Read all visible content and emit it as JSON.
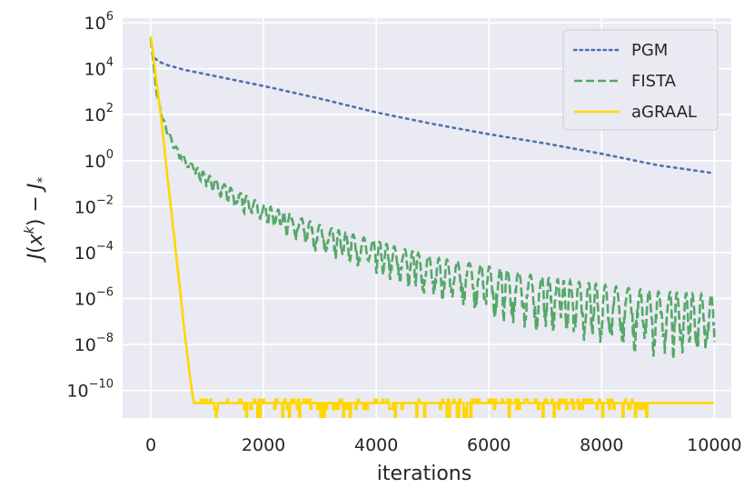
{
  "chart_data": {
    "type": "line",
    "title": "",
    "xlabel": "iterations",
    "ylabel": "J(x^k) − J_*",
    "yscale": "log",
    "xlim": [
      -500,
      10300
    ],
    "ylim_log10": [
      -11.2,
      6.2
    ],
    "grid": true,
    "legend_position": "top-right",
    "x_ticks": [
      {
        "value": 0,
        "label": "0"
      },
      {
        "value": 2000,
        "label": "2000"
      },
      {
        "value": 4000,
        "label": "4000"
      },
      {
        "value": 6000,
        "label": "6000"
      },
      {
        "value": 8000,
        "label": "8000"
      },
      {
        "value": 10000,
        "label": "10000"
      }
    ],
    "y_ticks": [
      {
        "exp": 6,
        "base": "10",
        "sup": "6"
      },
      {
        "exp": 4,
        "base": "10",
        "sup": "4"
      },
      {
        "exp": 2,
        "base": "10",
        "sup": "2"
      },
      {
        "exp": 0,
        "base": "10",
        "sup": "0"
      },
      {
        "exp": -2,
        "base": "10",
        "sup": "−2"
      },
      {
        "exp": -4,
        "base": "10",
        "sup": "−4"
      },
      {
        "exp": -6,
        "base": "10",
        "sup": "−6"
      },
      {
        "exp": -8,
        "base": "10",
        "sup": "−8"
      },
      {
        "exp": -10,
        "base": "10",
        "sup": "−10"
      }
    ],
    "series": [
      {
        "name": "PGM",
        "color": "#4c72b0",
        "style": "dotted",
        "x": [
          0,
          50,
          150,
          300,
          600,
          1000,
          1500,
          2000,
          3000,
          4000,
          5000,
          6000,
          7000,
          8000,
          9000,
          10000
        ],
        "log10_y": [
          5.3,
          4.5,
          4.3,
          4.15,
          3.95,
          3.75,
          3.5,
          3.25,
          2.7,
          2.1,
          1.6,
          1.15,
          0.75,
          0.3,
          -0.2,
          -0.55
        ]
      },
      {
        "name": "FISTA",
        "color": "#55a868",
        "style": "dashed",
        "x": [
          0,
          100,
          200,
          300,
          500,
          700,
          1000,
          1500,
          2000,
          3000,
          4000,
          5000,
          6000,
          7000,
          8000,
          9000,
          10000
        ],
        "log10_y": [
          5.3,
          3.0,
          2.0,
          1.3,
          0.4,
          -0.1,
          -0.6,
          -1.3,
          -1.9,
          -2.8,
          -3.5,
          -4.2,
          -4.6,
          -5.1,
          -5.4,
          -5.7,
          -5.85
        ],
        "oscillation_log10_depth": [
          0,
          0.1,
          0.2,
          0.3,
          0.3,
          0.4,
          0.6,
          0.8,
          0.9,
          1.3,
          1.5,
          1.8,
          2.2,
          2.5,
          2.7,
          2.9,
          3.2
        ]
      },
      {
        "name": "aGRAAL",
        "color": "#ffd700",
        "style": "solid",
        "x": [
          0,
          100,
          200,
          300,
          400,
          500,
          600,
          700,
          760,
          800,
          10000
        ],
        "log10_y": [
          5.4,
          3.5,
          1.5,
          -0.8,
          -3.0,
          -5.2,
          -7.5,
          -9.5,
          -10.5,
          -10.55,
          -10.55
        ],
        "plateau_log10": -10.5,
        "plateau_noise_log10": [
          -11.2,
          -10.2
        ]
      }
    ]
  }
}
